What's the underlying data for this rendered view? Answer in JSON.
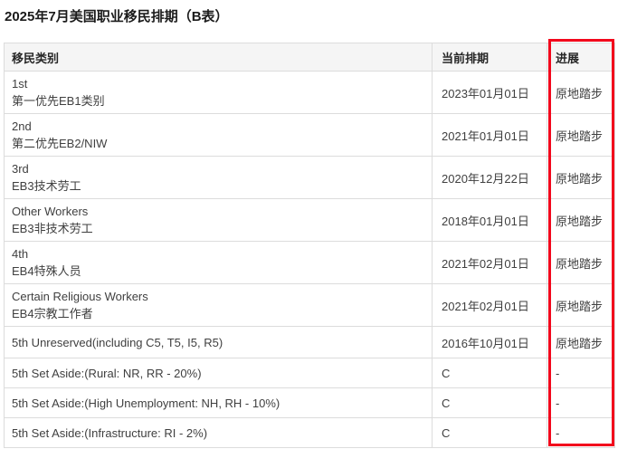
{
  "page": {
    "title": "2025年7月美国职业移民排期（B表）"
  },
  "table": {
    "headers": {
      "category": "移民类别",
      "current_date": "当前排期",
      "progress": "进展"
    },
    "rows": [
      {
        "category": "1st\n第一优先EB1类别",
        "current_date": "2023年01月01日",
        "progress": "原地踏步"
      },
      {
        "category": "2nd\n第二优先EB2/NIW",
        "current_date": "2021年01月01日",
        "progress": "原地踏步"
      },
      {
        "category": "3rd\nEB3技术劳工",
        "current_date": "2020年12月22日",
        "progress": "原地踏步"
      },
      {
        "category": "Other Workers\nEB3非技术劳工",
        "current_date": "2018年01月01日",
        "progress": "原地踏步"
      },
      {
        "category": "4th\nEB4特殊人员",
        "current_date": "2021年02月01日",
        "progress": "原地踏步"
      },
      {
        "category": "Certain Religious Workers\nEB4宗教工作者",
        "current_date": "2021年02月01日",
        "progress": "原地踏步"
      },
      {
        "category": "5th Unreserved(including C5, T5, I5, R5)",
        "current_date": "2016年10月01日",
        "progress": "原地踏步"
      },
      {
        "category": "5th Set Aside:(Rural: NR, RR - 20%)",
        "current_date": "C",
        "progress": "-"
      },
      {
        "category": "5th Set Aside:(High Unemployment: NH, RH - 10%)",
        "current_date": "C",
        "progress": "-"
      },
      {
        "category": "5th Set Aside:(Infrastructure: RI - 2%)",
        "current_date": "C",
        "progress": "-"
      }
    ],
    "highlight": {
      "column": "进展",
      "color": "#f2071c"
    }
  },
  "colors": {
    "header_background": "#f5f5f5",
    "table_border": "#dcdcdc",
    "body_text": "#404040",
    "title_text": "#1b1b1b",
    "highlight_red": "#f2071c"
  }
}
